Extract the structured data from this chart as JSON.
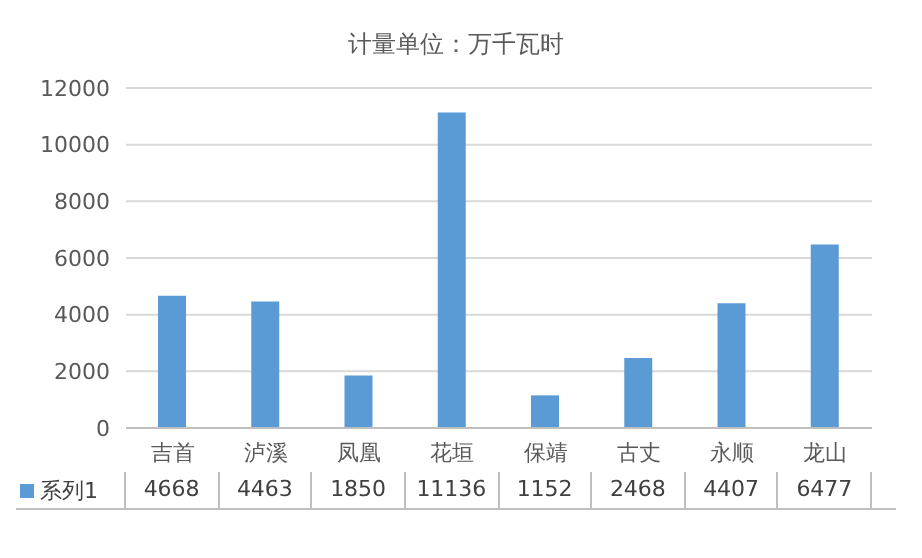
{
  "chart_data": {
    "type": "bar",
    "title": "计量单位：万千瓦时",
    "categories": [
      "吉首",
      "泸溪",
      "凤凰",
      "花垣",
      "保靖",
      "古丈",
      "永顺",
      "龙山"
    ],
    "series": [
      {
        "name": "系列1",
        "color": "#5b9bd5",
        "values": [
          4668,
          4463,
          1850,
          11136,
          1152,
          2468,
          4407,
          6477
        ]
      }
    ],
    "ylim": [
      0,
      12000
    ],
    "yticks": [
      0,
      2000,
      4000,
      6000,
      8000,
      10000,
      12000
    ],
    "grid": "y",
    "legend": "bottom",
    "data_labels": true
  }
}
